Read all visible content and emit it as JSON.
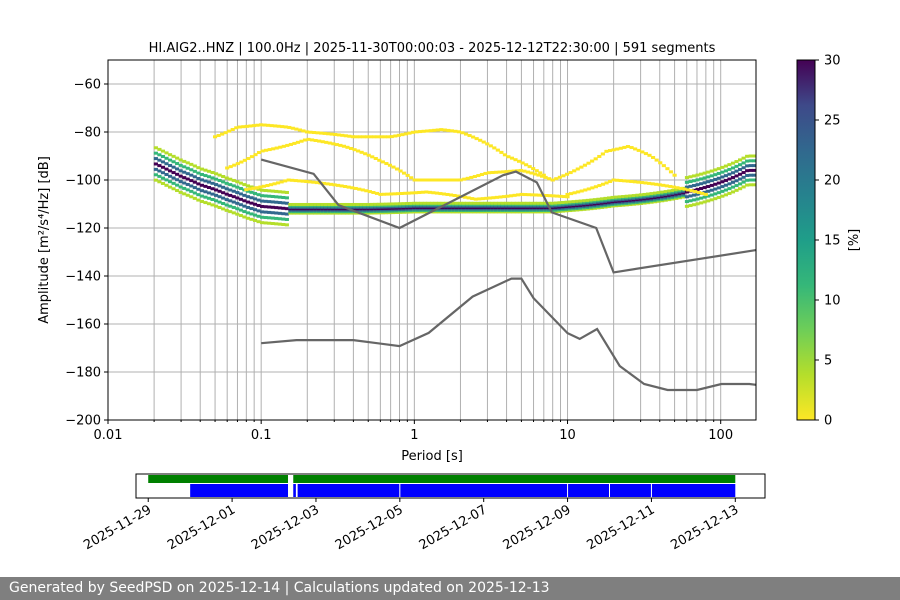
{
  "footer": {
    "text": "Generated by SeedPSD on 2025-12-14 | Calculations updated on 2025-12-13"
  },
  "chart_data": [
    {
      "type": "heatmap",
      "title": "HI.AIG2..HNZ | 100.0Hz | 2025-11-30T00:00:03 - 2025-12-12T22:30:00 | 591 segments",
      "xlabel": "Period [s]",
      "ylabel": "Amplitude [m²/s⁴/Hz] [dB]",
      "x_scale": "log",
      "xlim": [
        0.01,
        170
      ],
      "ylim": [
        -200,
        -50
      ],
      "x_ticks": [
        {
          "value": 0.01,
          "label": "0.01"
        },
        {
          "value": 0.1,
          "label": "0.1"
        },
        {
          "value": 1,
          "label": "1"
        },
        {
          "value": 10,
          "label": "10"
        },
        {
          "value": 100,
          "label": "100"
        }
      ],
      "y_ticks": [
        -60,
        -80,
        -100,
        -120,
        -140,
        -160,
        -180,
        -200
      ],
      "y_tick_labels": [
        "−60",
        "−80",
        "−100",
        "−120",
        "−140",
        "−160",
        "−180",
        "−200"
      ],
      "grid_periods": [
        0.02,
        0.03,
        0.04,
        0.05,
        0.06,
        0.07,
        0.08,
        0.09,
        0.1,
        0.2,
        0.3,
        0.4,
        0.5,
        0.6,
        0.7,
        0.8,
        0.9,
        1,
        2,
        3,
        4,
        5,
        6,
        7,
        8,
        9,
        10,
        20,
        30,
        40,
        50,
        60,
        70,
        80,
        90,
        100
      ],
      "grid_db": [
        -60,
        -80,
        -100,
        -120,
        -140,
        -160,
        -180
      ],
      "colormap": "viridis_r",
      "colorbar": {
        "label": "[%]",
        "min": 0,
        "max": 30,
        "ticks": [
          "0",
          "5",
          "10",
          "15",
          "20",
          "25",
          "30"
        ]
      },
      "psd_mode_curve": {
        "period": [
          0.02,
          0.025,
          0.03,
          0.04,
          0.05,
          0.06,
          0.07,
          0.08,
          0.1,
          0.15,
          0.2,
          0.3,
          0.5,
          1,
          2,
          3,
          5,
          8,
          10,
          15,
          20,
          30,
          50,
          70,
          100,
          150
        ],
        "db": [
          -93,
          -96,
          -98.5,
          -102,
          -104,
          -106,
          -107.5,
          -109,
          -111,
          -112,
          -112,
          -112,
          -112,
          -111.5,
          -111.5,
          -111.5,
          -111.5,
          -111.5,
          -111,
          -110,
          -109,
          -108,
          -106,
          -104,
          -101,
          -96
        ]
      },
      "outlier_curves": [
        {
          "period": [
            0.05,
            0.07,
            0.1,
            0.15,
            0.2,
            0.4,
            0.7,
            1,
            1.5,
            2,
            4,
            7
          ],
          "db": [
            -82,
            -78,
            -77,
            -78,
            -80,
            -82,
            -82,
            -80,
            -79,
            -80,
            -90,
            -98
          ]
        },
        {
          "period": [
            0.06,
            0.1,
            0.2,
            0.35,
            0.6,
            1,
            2,
            3,
            5,
            8
          ],
          "db": [
            -95,
            -88,
            -83,
            -86,
            -92,
            -100,
            -100,
            -97,
            -96,
            -100
          ]
        },
        {
          "period": [
            0.08,
            0.15,
            0.3,
            0.6,
            1.2,
            2.5,
            5,
            10
          ],
          "db": [
            -104,
            -100,
            -102,
            -106,
            -105,
            -108,
            -106,
            -107
          ]
        },
        {
          "period": [
            8,
            12,
            18,
            25,
            35,
            50
          ],
          "db": [
            -100,
            -95,
            -88,
            -86,
            -90,
            -98
          ]
        },
        {
          "period": [
            10,
            15,
            20,
            30,
            50,
            80
          ],
          "db": [
            -106,
            -103,
            -100,
            -101,
            -103,
            -106
          ]
        }
      ],
      "noise_models": [
        {
          "period": [
            0.1,
            0.22,
            0.32,
            0.8,
            3.8,
            4.6,
            6.3,
            7.9,
            15.4,
            20,
            354.8
          ],
          "db": [
            -91.5,
            -97.4,
            -110.5,
            -120,
            -98,
            -96.5,
            -101,
            -113.5,
            -120,
            -138.5,
            -126
          ]
        },
        {
          "period": [
            0.1,
            0.17,
            0.4,
            0.8,
            1.24,
            2.4,
            4.3,
            5,
            6,
            10,
            12,
            15.6,
            21.9,
            31.6,
            45,
            70,
            101,
            154,
            328,
            600
          ],
          "db": [
            -168,
            -166.7,
            -166.7,
            -169.2,
            -163.7,
            -148.6,
            -141.1,
            -141.1,
            -149.2,
            -163.8,
            -166.2,
            -162.1,
            -177.5,
            -185,
            -187.5,
            -187.5,
            -185,
            -185,
            -187.5,
            -184.4
          ]
        }
      ]
    },
    {
      "type": "timeline",
      "x": "date",
      "xlim": [
        "2025-11-28T17:00",
        "2025-12-13T17:00"
      ],
      "x_tick_labels": [
        "2025-11-29",
        "2025-12-01",
        "2025-12-03",
        "2025-12-05",
        "2025-12-07",
        "2025-12-09",
        "2025-12-11",
        "2025-12-13"
      ],
      "x_tick_dates": [
        "2025-11-29",
        "2025-12-01",
        "2025-12-03",
        "2025-12-05",
        "2025-12-07",
        "2025-12-09",
        "2025-12-11",
        "2025-12-13"
      ],
      "data_coverage": [
        [
          "2025-11-29T00:00",
          "2025-12-02T08:00"
        ],
        [
          "2025-12-02T11:00",
          "2025-12-13T00:00"
        ]
      ],
      "psd_coverage": [
        [
          "2025-11-30T00:00",
          "2025-12-02T08:00"
        ],
        [
          "2025-12-02T11:00",
          "2025-12-02T12:30"
        ],
        [
          "2025-12-02T13:30",
          "2025-12-13T00:00"
        ]
      ],
      "coverage_colors": {
        "data": "#008000",
        "psd": "#0000ff"
      }
    }
  ]
}
